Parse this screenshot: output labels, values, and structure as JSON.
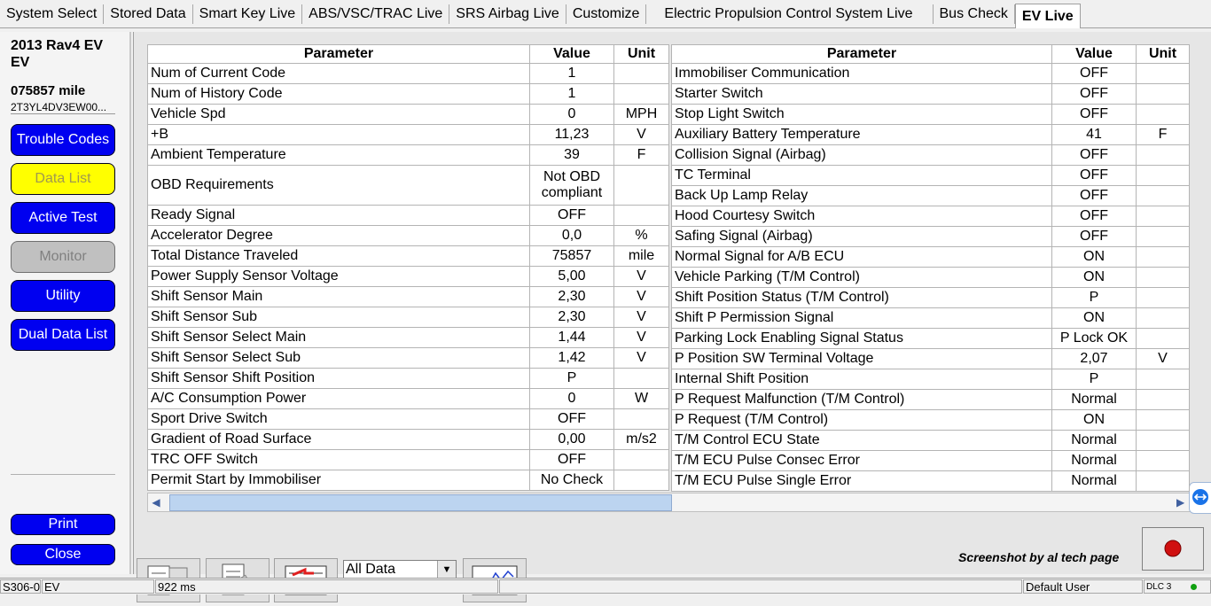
{
  "tabs": [
    {
      "label": "System Select"
    },
    {
      "label": "Stored Data"
    },
    {
      "label": "Smart Key Live"
    },
    {
      "label": "ABS/VSC/TRAC Live"
    },
    {
      "label": "SRS Airbag Live"
    },
    {
      "label": "Customize"
    },
    {
      "label": "Electric Propulsion Control System Live"
    },
    {
      "label": "Bus Check"
    },
    {
      "label": "EV Live",
      "selected": true
    }
  ],
  "sidebar": {
    "vehicle": "2013 Rav4 EV",
    "model": "EV",
    "mileage": "075857 mile",
    "vin": "2T3YL4DV3EW00...",
    "buttons": [
      {
        "label": "Trouble Codes",
        "state": "normal"
      },
      {
        "label": "Data List",
        "state": "selected"
      },
      {
        "label": "Active Test",
        "state": "normal"
      },
      {
        "label": "Monitor",
        "state": "disabled"
      },
      {
        "label": "Utility",
        "state": "normal"
      },
      {
        "label": "Dual Data List",
        "state": "normal"
      }
    ],
    "print": "Print",
    "close": "Close"
  },
  "table": {
    "headers": [
      "Parameter",
      "Value",
      "Unit"
    ],
    "left": [
      {
        "parameter": "Num of Current Code",
        "value": "1"
      },
      {
        "parameter": "Num of History Code",
        "value": "1"
      },
      {
        "parameter": "Vehicle Spd",
        "value": "0",
        "unit": "MPH"
      },
      {
        "parameter": "+B",
        "value": "11,23",
        "unit": "V"
      },
      {
        "parameter": "Ambient Temperature",
        "value": "39",
        "unit": "F"
      },
      {
        "parameter": "OBD Requirements",
        "value": "Not OBD compliant",
        "tall": true
      },
      {
        "parameter": "Ready Signal",
        "value": "OFF"
      },
      {
        "parameter": "Accelerator Degree",
        "value": "0,0",
        "unit": "%"
      },
      {
        "parameter": "Total Distance Traveled",
        "value": "75857",
        "unit": "mile"
      },
      {
        "parameter": "Power Supply Sensor Voltage",
        "value": "5,00",
        "unit": "V"
      },
      {
        "parameter": "Shift Sensor Main",
        "value": "2,30",
        "unit": "V"
      },
      {
        "parameter": "Shift Sensor Sub",
        "value": "2,30",
        "unit": "V"
      },
      {
        "parameter": "Shift Sensor Select Main",
        "value": "1,44",
        "unit": "V"
      },
      {
        "parameter": "Shift Sensor Select Sub",
        "value": "1,42",
        "unit": "V"
      },
      {
        "parameter": "Shift Sensor Shift Position",
        "value": "P"
      },
      {
        "parameter": "A/C Consumption Power",
        "value": "0",
        "unit": "W"
      },
      {
        "parameter": "Sport Drive Switch",
        "value": "OFF"
      },
      {
        "parameter": "Gradient of Road Surface",
        "value": "0,00",
        "unit": "m/s2"
      },
      {
        "parameter": "TRC OFF Switch",
        "value": "OFF"
      },
      {
        "parameter": "Permit Start by Immobiliser",
        "value": "No Check"
      }
    ],
    "right": [
      {
        "parameter": "Immobiliser Communication",
        "value": "OFF"
      },
      {
        "parameter": "Starter Switch",
        "value": "OFF"
      },
      {
        "parameter": "Stop Light Switch",
        "value": "OFF"
      },
      {
        "parameter": "Auxiliary Battery Temperature",
        "value": "41",
        "unit": "F"
      },
      {
        "parameter": "Collision Signal (Airbag)",
        "value": "OFF"
      },
      {
        "parameter": "TC Terminal",
        "value": "OFF"
      },
      {
        "parameter": "Back Up Lamp Relay",
        "value": "OFF"
      },
      {
        "parameter": "Hood Courtesy Switch",
        "value": "OFF"
      },
      {
        "parameter": "Safing Signal (Airbag)",
        "value": "OFF"
      },
      {
        "parameter": "Normal Signal for A/B ECU",
        "value": "ON"
      },
      {
        "parameter": "Vehicle Parking (T/M Control)",
        "value": "ON"
      },
      {
        "parameter": "Shift Position Status (T/M Control)",
        "value": "P"
      },
      {
        "parameter": "Shift P Permission Signal",
        "value": "ON"
      },
      {
        "parameter": "Parking Lock Enabling Signal Status",
        "value": "P Lock OK"
      },
      {
        "parameter": "P Position SW Terminal Voltage",
        "value": "2,07",
        "unit": "V"
      },
      {
        "parameter": "Internal Shift Position",
        "value": "P"
      },
      {
        "parameter": "P Request Malfunction (T/M Control)",
        "value": "Normal"
      },
      {
        "parameter": "P Request (T/M Control)",
        "value": "ON"
      },
      {
        "parameter": "T/M Control ECU State",
        "value": "Normal"
      },
      {
        "parameter": "T/M ECU Pulse Consec Error",
        "value": "Normal"
      },
      {
        "parameter": "T/M ECU Pulse Single Error",
        "value": "Normal"
      }
    ]
  },
  "toolbar": {
    "filter": "All Data",
    "watermark": "Screenshot by al tech page"
  },
  "status_bar": {
    "code": "S306-0",
    "mode": "EV",
    "time": "922 ms",
    "user": "Default User",
    "connection": "DLC 3"
  }
}
